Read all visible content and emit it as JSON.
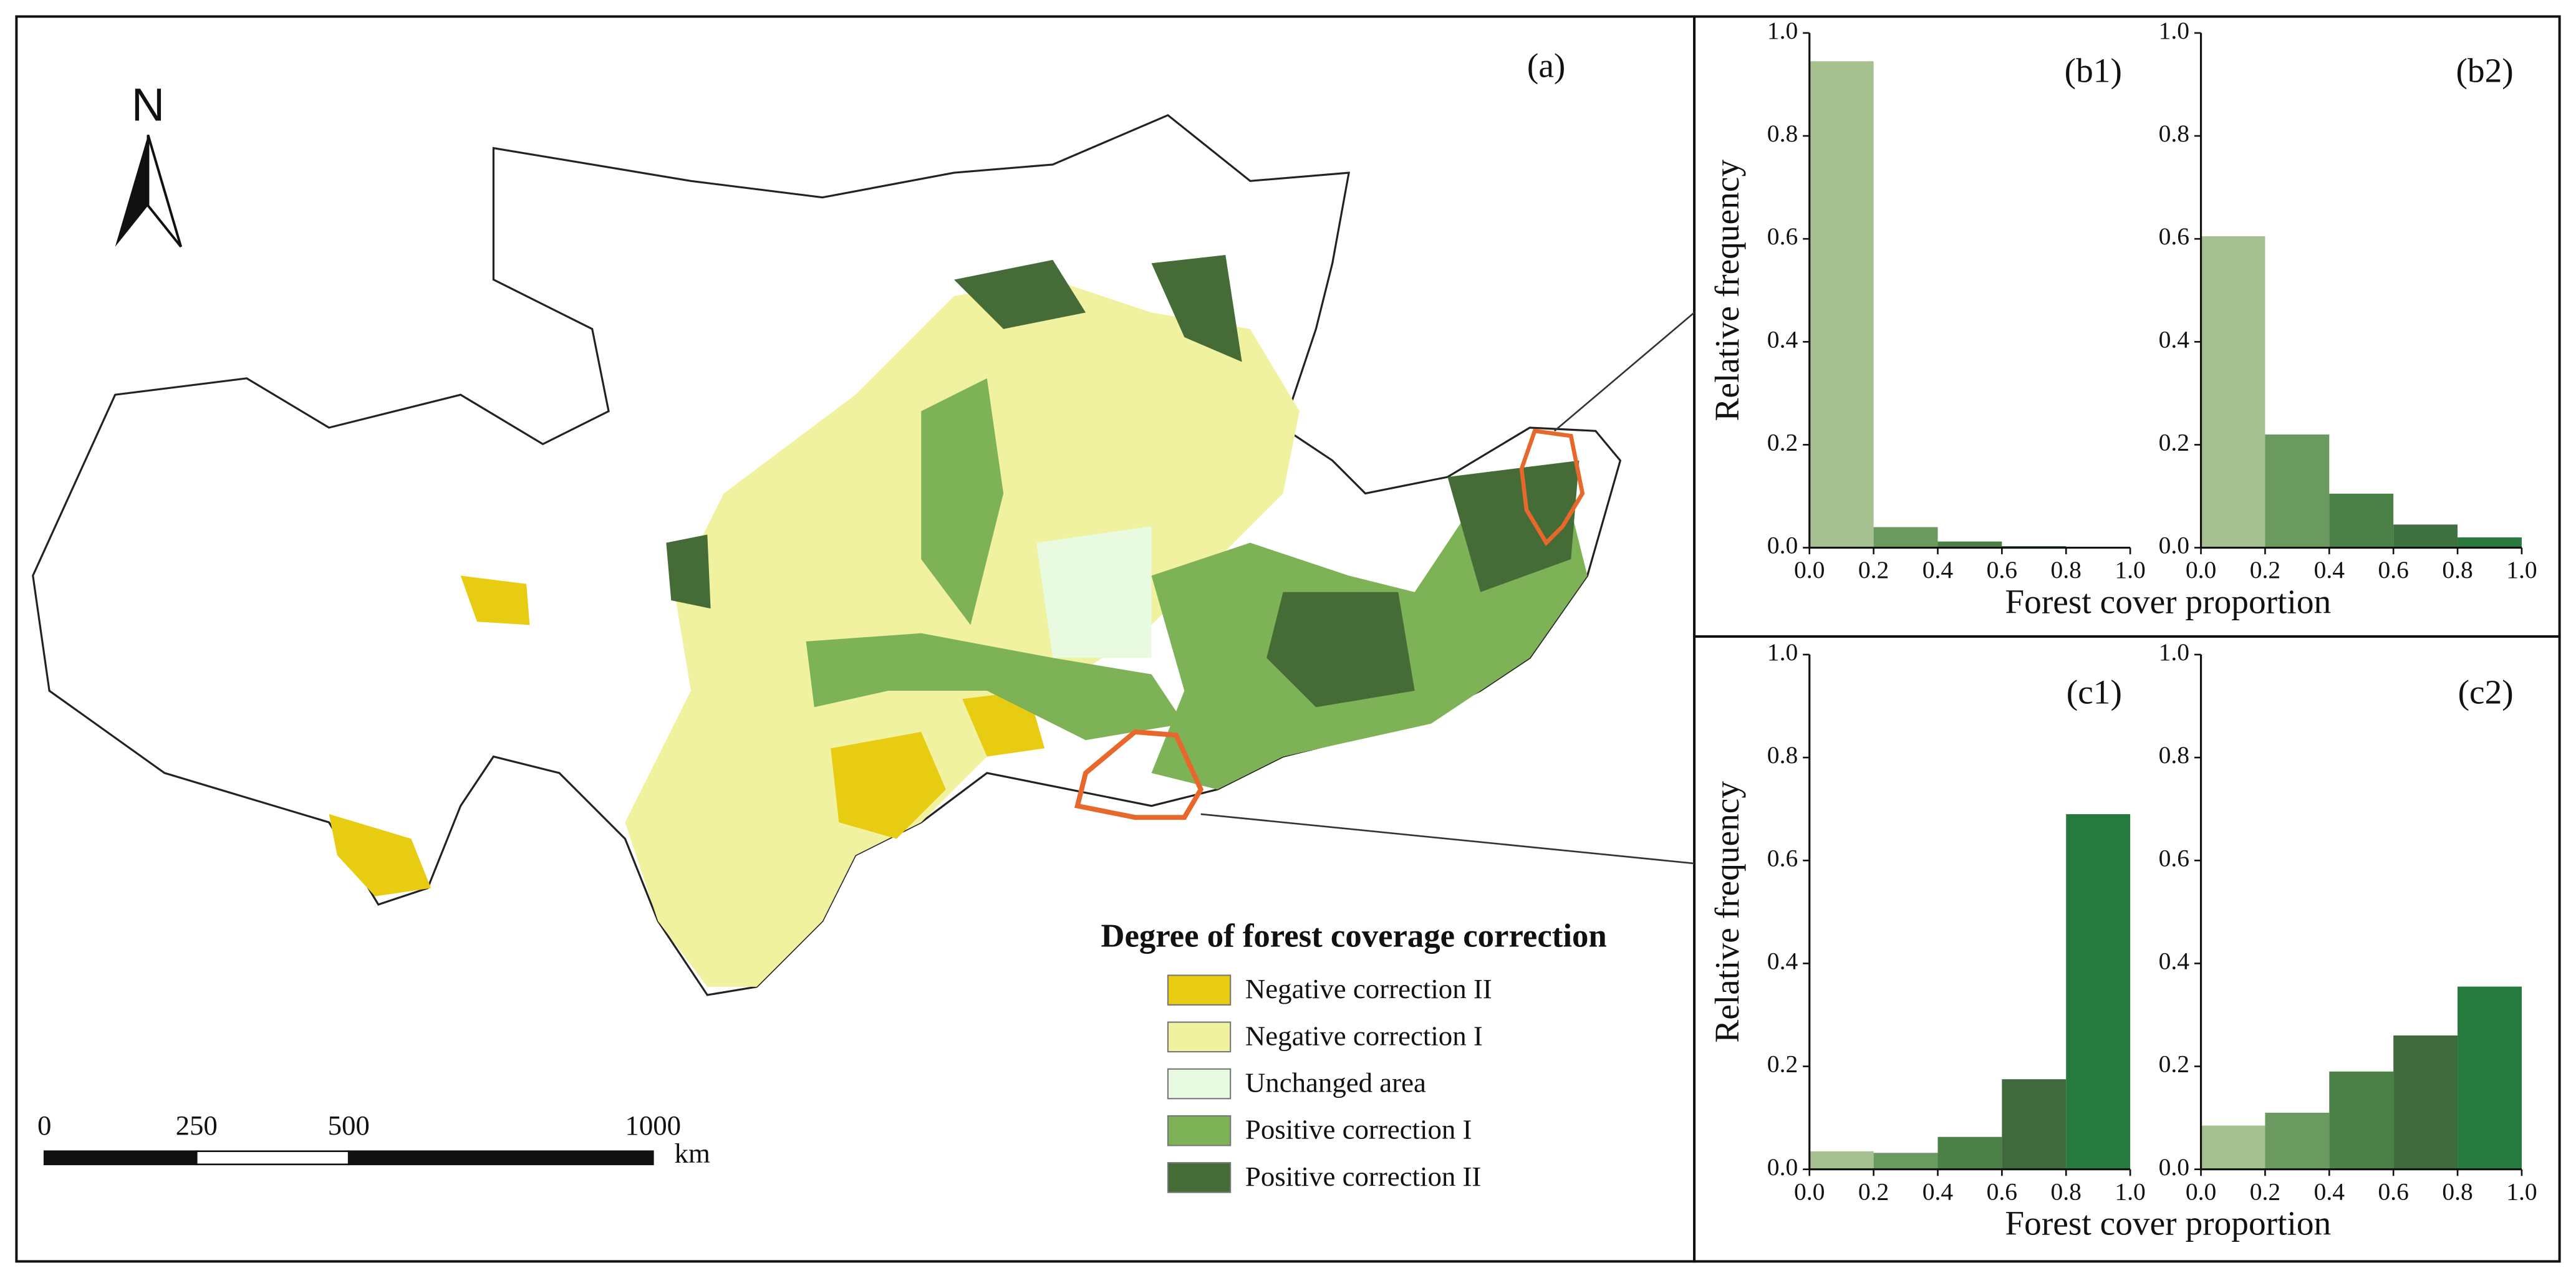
{
  "map": {
    "title": "(a)",
    "north": "N",
    "legend": {
      "title": "Degree of forest coverage correction",
      "items": [
        {
          "label": "Negative correction II",
          "color": "#e8cc12"
        },
        {
          "label": "Negative correction I",
          "color": "#f1f2a0"
        },
        {
          "label": "Unchanged area",
          "color": "#e8fbe0"
        },
        {
          "label": "Positive  correction I",
          "color": "#7db356"
        },
        {
          "label": "Positive  correction II",
          "color": "#456b37"
        }
      ]
    },
    "scale_bar": {
      "ticks": [
        0,
        250,
        500,
        1000
      ],
      "unit": "km"
    }
  },
  "chart_data": [
    {
      "type": "histogram",
      "title": "(b1)",
      "ylabel": "Relative frequency",
      "xlabel": "Forest cover proportion",
      "bins": [
        0,
        0.2,
        0.4,
        0.6,
        0.8,
        1.0
      ],
      "counts": [
        0.945,
        0.04,
        0.012,
        0.003,
        0.001
      ],
      "colors": [
        "#a6c08f",
        "#6a9a5f",
        "#4b8147",
        "#3f7040",
        "#2a7a3e"
      ],
      "xlim": [
        0,
        1
      ],
      "ylim": [
        0,
        1
      ],
      "xticks": [
        {
          "value": 0,
          "label": "0.0"
        },
        0.2,
        0.4,
        0.6,
        0.8,
        {
          "value": 1,
          "label": "1.0"
        }
      ],
      "yticks": [
        {
          "value": 0,
          "label": "0.0"
        },
        0.2,
        0.4,
        0.6,
        0.8,
        {
          "value": 1,
          "label": "1.0"
        }
      ]
    },
    {
      "type": "histogram",
      "title": "(b2)",
      "bins": [
        0,
        0.2,
        0.4,
        0.6,
        0.8,
        1.0
      ],
      "counts": [
        0.605,
        0.22,
        0.105,
        0.045,
        0.02
      ],
      "colors": [
        "#a6c08f",
        "#6a9a5f",
        "#4b8147",
        "#3f7040",
        "#2a7a3e"
      ],
      "xlim": [
        0,
        1
      ],
      "ylim": [
        0,
        1
      ],
      "xticks": [
        {
          "value": 0,
          "label": "0.0"
        },
        0.2,
        0.4,
        0.6,
        0.8,
        {
          "value": 1,
          "label": "1.0"
        }
      ],
      "yticks": [
        {
          "value": 0,
          "label": "0.0"
        },
        0.2,
        0.4,
        0.6,
        0.8,
        {
          "value": 1,
          "label": "1.0"
        }
      ]
    },
    {
      "type": "histogram",
      "title": "(c1)",
      "ylabel": "Relative frequency",
      "xlabel": "Forest cover proportion",
      "bins": [
        0,
        0.2,
        0.4,
        0.6,
        0.8,
        1.0
      ],
      "counts": [
        0.035,
        0.032,
        0.063,
        0.175,
        0.69
      ],
      "colors": [
        "#a6c08f",
        "#6a9a5f",
        "#4b8147",
        "#3f6a3c",
        "#267a3e"
      ],
      "xlim": [
        0,
        1
      ],
      "ylim": [
        0,
        1
      ],
      "xticks": [
        {
          "value": 0,
          "label": "0.0"
        },
        0.2,
        0.4,
        0.6,
        0.8,
        {
          "value": 1,
          "label": "1.0"
        }
      ],
      "yticks": [
        {
          "value": 0,
          "label": "0.0"
        },
        0.2,
        0.4,
        0.6,
        0.8,
        {
          "value": 1,
          "label": "1.0"
        }
      ]
    },
    {
      "type": "histogram",
      "title": "(c2)",
      "bins": [
        0,
        0.2,
        0.4,
        0.6,
        0.8,
        1.0
      ],
      "counts": [
        0.085,
        0.11,
        0.19,
        0.26,
        0.355
      ],
      "colors": [
        "#a6c08f",
        "#6a9a5f",
        "#4b8147",
        "#3f6a3c",
        "#267a3e"
      ],
      "xlim": [
        0,
        1
      ],
      "ylim": [
        0,
        1
      ],
      "xticks": [
        {
          "value": 0,
          "label": "0.0"
        },
        0.2,
        0.4,
        0.6,
        0.8,
        {
          "value": 1,
          "label": "1.0"
        }
      ],
      "yticks": [
        {
          "value": 0,
          "label": "0.0"
        },
        0.2,
        0.4,
        0.6,
        0.8,
        {
          "value": 1,
          "label": "1.0"
        }
      ]
    }
  ]
}
